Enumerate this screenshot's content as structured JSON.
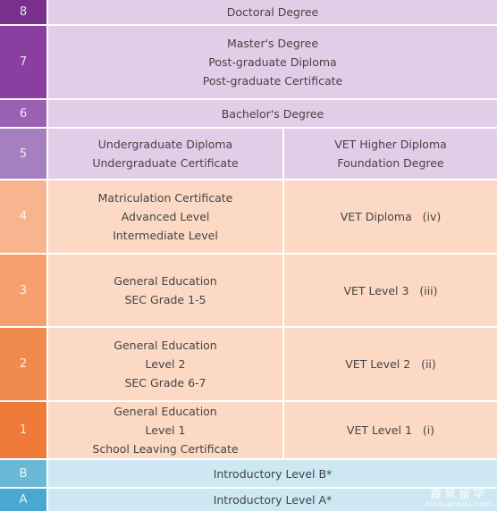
{
  "levels": [
    {
      "level": "8",
      "cells": [
        [
          "Doctoral Degree"
        ]
      ]
    },
    {
      "level": "7",
      "cells": [
        [
          "Master's Degree",
          "Post-graduate Diploma",
          "Post-graduate Certificate"
        ]
      ]
    },
    {
      "level": "6",
      "cells": [
        [
          "Bachelor's Degree"
        ]
      ]
    },
    {
      "level": "5",
      "cells": [
        [
          "Undergraduate Diploma",
          "Undergraduate Certificate"
        ],
        [
          "VET Higher Diploma",
          "Foundation Degree"
        ]
      ]
    },
    {
      "level": "4",
      "cells": [
        [
          "Matriculation Certificate",
          "Advanced Level",
          "Intermediate Level"
        ],
        [
          "VET Diploma   (iv)"
        ]
      ]
    },
    {
      "level": "3",
      "cells": [
        [
          "General Education",
          "SEC Grade 1-5"
        ],
        [
          "VET Level 3   (iii)"
        ]
      ]
    },
    {
      "level": "2",
      "cells": [
        [
          "General Education",
          "Level 2",
          "SEC Grade 6-7"
        ],
        [
          "VET Level 2   (ii)"
        ]
      ]
    },
    {
      "level": "1",
      "cells": [
        [
          "General Education",
          "Level 1",
          "School Leaving Certificate"
        ],
        [
          "VET Level 1   (i)"
        ]
      ]
    },
    {
      "level": "B",
      "cells": [
        [
          "Introductory Level B*"
        ]
      ]
    },
    {
      "level": "A",
      "cells": [
        [
          "Introductory Level A*"
        ]
      ]
    }
  ],
  "colors": {
    "level_badges": [
      "#7a2f8e",
      "#8a3fa0",
      "#9a60b2",
      "#a57fc0",
      "#f7b48e",
      "#f5a06e",
      "#f18a4f",
      "#ef7a3a",
      "#6bb8d6",
      "#4aa8d0"
    ],
    "cells": [
      "#e2cde9",
      "#e2cde9",
      "#e2cde9",
      "#e2cde9",
      "#fcd9c4",
      "#fcd9c4",
      "#fcd9c4",
      "#fcd9c4",
      "#cde7f3",
      "#cde7f3"
    ]
  },
  "watermark": {
    "chinese": "鑫泉留学",
    "url": "xinquanedu.com"
  }
}
